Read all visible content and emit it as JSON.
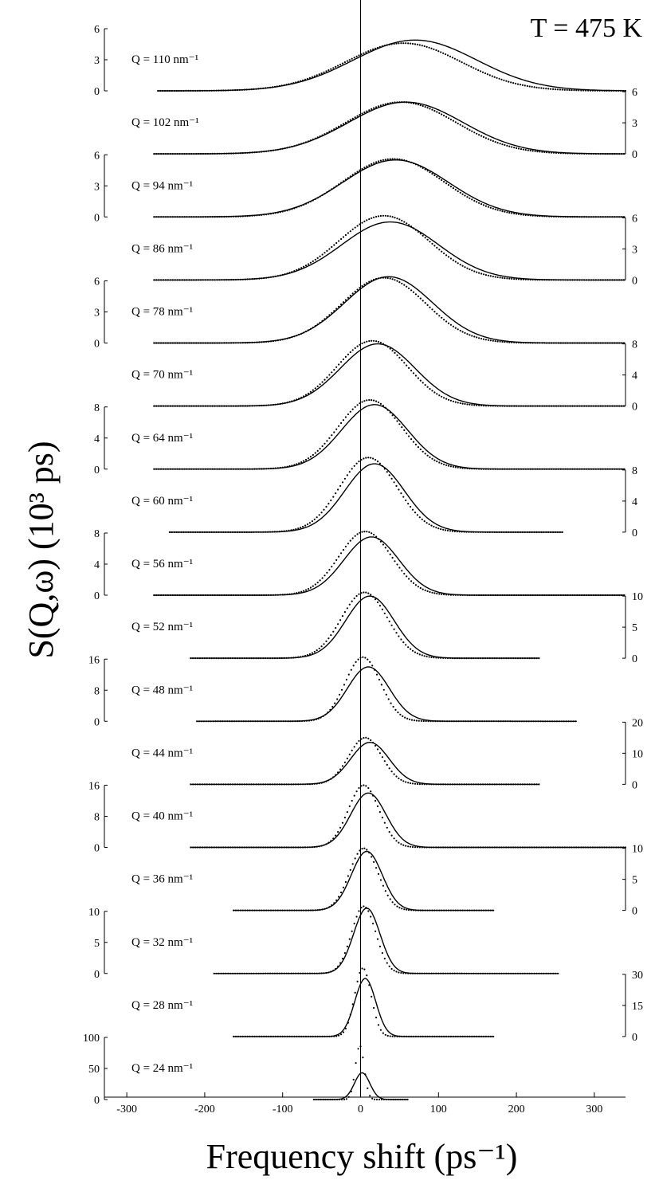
{
  "chart_data": {
    "type": "line",
    "title": "T = 475 K",
    "xlabel": "Frequency shift (ps⁻¹)",
    "ylabel": "S(Q,ω) (10³ ps)",
    "xlim": [
      -340,
      340
    ],
    "x_ticks": [
      -300,
      -200,
      -100,
      0,
      100,
      200,
      300
    ],
    "vertical_line_at": 0,
    "colors": {
      "line": "#000000",
      "axis": "#000000"
    },
    "panels": [
      {
        "label": "Q = 110 nm⁻¹",
        "axis": "left",
        "ticks": [
          0,
          3,
          6
        ],
        "ylim": [
          0,
          6
        ],
        "x_range": [
          -260,
          340
        ],
        "peak": 4.9,
        "center": 70,
        "width": 112,
        "data_peak": 4.6,
        "data_center": 55,
        "data_width": 105
      },
      {
        "label": "Q = 102 nm⁻¹",
        "axis": "right",
        "ticks": [
          0,
          3,
          6
        ],
        "ylim": [
          0,
          6
        ],
        "x_range": [
          -265,
          340
        ],
        "peak": 5.0,
        "center": 58,
        "width": 104,
        "data_peak": 5.0,
        "data_center": 52,
        "data_width": 100
      },
      {
        "label": "Q = 94 nm⁻¹",
        "axis": "left",
        "ticks": [
          0,
          3,
          6
        ],
        "ylim": [
          0,
          6
        ],
        "x_range": [
          -265,
          340
        ],
        "peak": 5.5,
        "center": 45,
        "width": 96,
        "data_peak": 5.6,
        "data_center": 42,
        "data_width": 92
      },
      {
        "label": "Q = 86 nm⁻¹",
        "axis": "right",
        "ticks": [
          0,
          3,
          6
        ],
        "ylim": [
          0,
          6
        ],
        "x_range": [
          -265,
          340
        ],
        "peak": 5.6,
        "center": 38,
        "width": 88,
        "data_peak": 6.2,
        "data_center": 30,
        "data_width": 82
      },
      {
        "label": "Q = 78 nm⁻¹",
        "axis": "left",
        "ticks": [
          0,
          3,
          6
        ],
        "ylim": [
          0,
          6
        ],
        "x_range": [
          -265,
          340
        ],
        "peak": 6.4,
        "center": 36,
        "width": 80,
        "data_peak": 6.3,
        "data_center": 30,
        "data_width": 76
      },
      {
        "label": "Q = 70 nm⁻¹",
        "axis": "right",
        "ticks": [
          0,
          4,
          8
        ],
        "ylim": [
          0,
          8
        ],
        "x_range": [
          -265,
          340
        ],
        "peak": 8.0,
        "center": 22,
        "width": 68,
        "data_peak": 8.4,
        "data_center": 15,
        "data_width": 64
      },
      {
        "label": "Q = 64 nm⁻¹",
        "axis": "left",
        "ticks": [
          0,
          4,
          8
        ],
        "ylim": [
          0,
          8
        ],
        "x_range": [
          -265,
          340
        ],
        "peak": 8.3,
        "center": 18,
        "width": 60,
        "data_peak": 8.9,
        "data_center": 12,
        "data_width": 58
      },
      {
        "label": "Q = 60 nm⁻¹",
        "axis": "right",
        "ticks": [
          0,
          4,
          8
        ],
        "ylim": [
          0,
          8
        ],
        "x_range": [
          -245,
          260
        ],
        "peak": 8.8,
        "center": 18,
        "width": 54,
        "data_peak": 9.6,
        "data_center": 10,
        "data_width": 52
      },
      {
        "label": "Q = 56 nm⁻¹",
        "axis": "left",
        "ticks": [
          0,
          4,
          8
        ],
        "ylim": [
          0,
          8
        ],
        "x_range": [
          -265,
          340
        ],
        "peak": 7.5,
        "center": 14,
        "width": 50,
        "data_peak": 8.2,
        "data_center": 6,
        "data_width": 48
      },
      {
        "label": "Q = 52 nm⁻¹",
        "axis": "right",
        "ticks": [
          0,
          5,
          10
        ],
        "ylim": [
          0,
          10
        ],
        "x_range": [
          -218,
          230
        ],
        "peak": 10.0,
        "center": 12,
        "width": 44,
        "data_peak": 10.6,
        "data_center": 5,
        "data_width": 42
      },
      {
        "label": "Q = 48 nm⁻¹",
        "axis": "left",
        "ticks": [
          0,
          8,
          16
        ],
        "ylim": [
          0,
          16
        ],
        "x_range": [
          -210,
          278
        ],
        "peak": 14.0,
        "center": 10,
        "width": 38,
        "data_peak": 16.5,
        "data_center": 3,
        "data_width": 32
      },
      {
        "label": "Q = 44 nm⁻¹",
        "axis": "right",
        "ticks": [
          0,
          10,
          20
        ],
        "ylim": [
          0,
          20
        ],
        "x_range": [
          -218,
          230
        ],
        "peak": 13.5,
        "center": 12,
        "width": 35,
        "data_peak": 15.0,
        "data_center": 6,
        "data_width": 30
      },
      {
        "label": "Q = 40 nm⁻¹",
        "axis": "left",
        "ticks": [
          0,
          8,
          16
        ],
        "ylim": [
          0,
          16
        ],
        "x_range": [
          -218,
          340
        ],
        "peak": 14.0,
        "center": 10,
        "width": 32,
        "data_peak": 16.0,
        "data_center": 4,
        "data_width": 28
      },
      {
        "label": "Q = 36 nm⁻¹",
        "axis": "right",
        "ticks": [
          0,
          5,
          10
        ],
        "ylim": [
          0,
          10
        ],
        "x_range": [
          -163,
          172
        ],
        "peak": 9.5,
        "center": 8,
        "width": 28,
        "data_peak": 10.0,
        "data_center": 4,
        "data_width": 26
      },
      {
        "label": "Q = 32 nm⁻¹",
        "axis": "left",
        "ticks": [
          0,
          5,
          10
        ],
        "ylim": [
          0,
          10
        ],
        "x_range": [
          -188,
          255
        ],
        "peak": 10.5,
        "center": 8,
        "width": 24,
        "data_peak": 10.8,
        "data_center": 4,
        "data_width": 22
      },
      {
        "label": "Q = 28 nm⁻¹",
        "axis": "right",
        "ticks": [
          0,
          15,
          30
        ],
        "ylim": [
          0,
          30
        ],
        "x_range": [
          -163,
          172
        ],
        "peak": 28.0,
        "center": 6,
        "width": 19,
        "data_peak": 33.0,
        "data_center": 3,
        "data_width": 15
      },
      {
        "label": "Q = 24 nm⁻¹",
        "axis": "left",
        "ticks": [
          0,
          50,
          100
        ],
        "ylim": [
          0,
          100
        ],
        "x_range": [
          -60,
          62
        ],
        "peak": 43,
        "center": 2,
        "width": 14,
        "data_peak": 87,
        "data_center": -1,
        "data_width": 8
      }
    ]
  }
}
